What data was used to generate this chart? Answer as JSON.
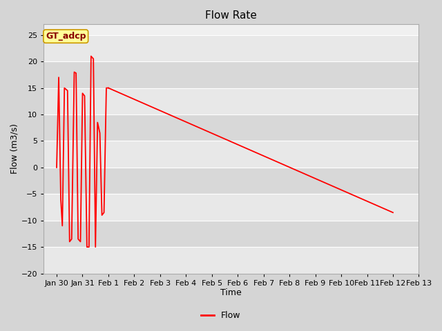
{
  "title": "Flow Rate",
  "xlabel": "Time",
  "ylabel": "Flow (m3/s)",
  "ylim": [
    -20,
    27
  ],
  "yticks": [
    -20,
    -15,
    -10,
    -5,
    0,
    5,
    10,
    15,
    20,
    25
  ],
  "fig_bg_color": "#d5d5d5",
  "axes_bg_color": "#f0f0f0",
  "line_color": "#ff0000",
  "annotation_text": "GT_adcp",
  "annotation_bg": "#ffff99",
  "annotation_border": "#cc9900",
  "legend_label": "Flow",
  "x_tick_labels": [
    "Jan 30",
    "Jan 31",
    "Feb 1",
    "Feb 2",
    "Feb 3",
    "Feb 4",
    "Feb 5",
    "Feb 6",
    "Feb 7",
    "Feb 8",
    "Feb 9",
    "Feb 10",
    "Feb 11",
    "Feb 12",
    "Feb 13"
  ],
  "oscillation_data": {
    "t": [
      0.0,
      0.08,
      0.16,
      0.22,
      0.3,
      0.42,
      0.5,
      0.58,
      0.68,
      0.75,
      0.83,
      0.92,
      1.0,
      1.08,
      1.17,
      1.25,
      1.33,
      1.42,
      1.5,
      1.58,
      1.67,
      1.75,
      1.83,
      1.92,
      2.0
    ],
    "y": [
      0.0,
      17.0,
      -6.0,
      -11.0,
      15.0,
      14.5,
      -14.0,
      -13.5,
      18.0,
      17.8,
      -13.5,
      -14.0,
      14.0,
      13.5,
      -15.0,
      -15.0,
      21.0,
      20.5,
      -15.0,
      8.5,
      6.5,
      -9.0,
      -8.5,
      15.0,
      15.0
    ]
  },
  "linear_data": {
    "t": [
      2.0,
      13.0
    ],
    "y": [
      15.0,
      -8.5
    ]
  },
  "band_colors": [
    "#e8e8e8",
    "#d8d8d8"
  ],
  "band_yticks": [
    -20,
    -15,
    -10,
    -5,
    0,
    5,
    10,
    15,
    20,
    25
  ]
}
